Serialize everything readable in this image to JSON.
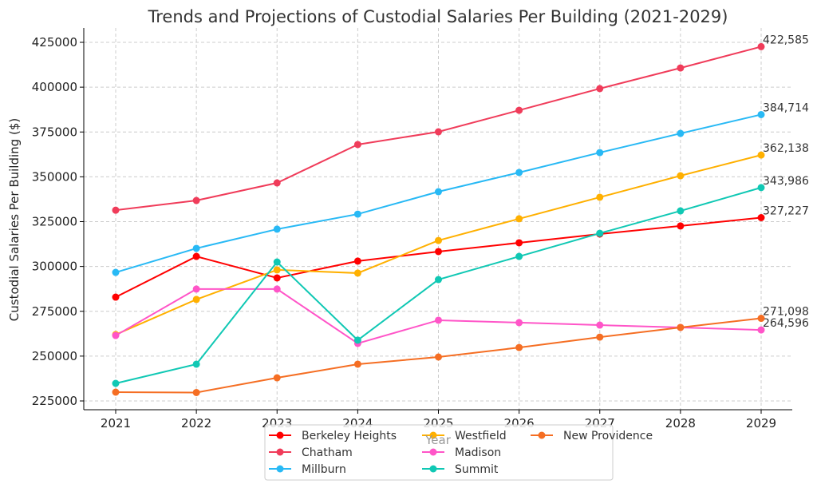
{
  "chart_data": {
    "type": "line",
    "title": "Trends and Projections of Custodial Salaries Per Building (2021-2029)",
    "xlabel": "Year",
    "ylabel": "Custodial Salaries Per Building ($)",
    "x": [
      2021,
      2022,
      2023,
      2024,
      2025,
      2026,
      2027,
      2028,
      2029
    ],
    "ylim": [
      220000,
      432000
    ],
    "yticks": [
      225000,
      250000,
      275000,
      300000,
      325000,
      350000,
      375000,
      400000,
      425000
    ],
    "grid": true,
    "legend_position": "bottom-center",
    "series": [
      {
        "name": "Berkeley Heights",
        "color": "#ff0000",
        "values": [
          282900,
          305600,
          293600,
          303000,
          308300,
          313200,
          318100,
          322600,
          327227
        ],
        "end_label": "327,227"
      },
      {
        "name": "Chatham",
        "color": "#f03c5a",
        "values": [
          331400,
          336800,
          346600,
          368000,
          375100,
          387100,
          399200,
          410700,
          422585
        ],
        "end_label": "422,585"
      },
      {
        "name": "Millburn",
        "color": "#28b9f5",
        "values": [
          296700,
          310100,
          320800,
          329200,
          341700,
          352400,
          363500,
          374200,
          384714
        ],
        "end_label": "384,714"
      },
      {
        "name": "Westfield",
        "color": "#ffb000",
        "values": [
          262000,
          281600,
          298100,
          296300,
          314500,
          326600,
          338600,
          350600,
          362138
        ],
        "end_label": "362,138"
      },
      {
        "name": "Madison",
        "color": "#ff55c8",
        "values": [
          261500,
          287400,
          287400,
          257100,
          270000,
          268700,
          267300,
          266000,
          264596
        ],
        "end_label": "264,596"
      },
      {
        "name": "Summit",
        "color": "#10c8b4",
        "values": [
          234800,
          245500,
          302500,
          258900,
          292700,
          305600,
          318500,
          331000,
          343986
        ],
        "end_label": "343,986"
      },
      {
        "name": "New Providence",
        "color": "#f56e23",
        "values": [
          229900,
          229700,
          237900,
          245500,
          249500,
          254800,
          260600,
          266000,
          271098
        ],
        "end_label": "271,098"
      }
    ],
    "legend_order": [
      "Berkeley Heights",
      "Chatham",
      "Millburn",
      "Westfield",
      "Madison",
      "Summit",
      "New Providence"
    ]
  }
}
